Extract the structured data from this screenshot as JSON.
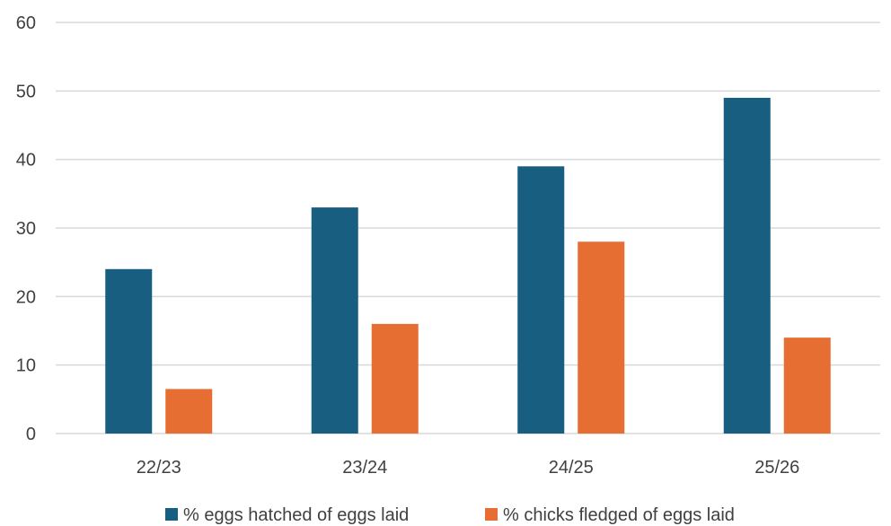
{
  "chart_data": {
    "type": "bar",
    "title": "",
    "xlabel": "",
    "ylabel": "",
    "ylim": [
      0,
      60
    ],
    "y_ticks": [
      0,
      10,
      20,
      30,
      40,
      50,
      60
    ],
    "grid": true,
    "legend_position": "bottom",
    "categories": [
      "22/23",
      "23/24",
      "24/25",
      "25/26"
    ],
    "series": [
      {
        "name": "% eggs hatched of eggs laid",
        "color": "#175e80",
        "values": [
          24,
          33,
          39,
          49
        ]
      },
      {
        "name": "% chicks fledged of eggs laid",
        "color": "#e66e32",
        "values": [
          6.5,
          16,
          28,
          14
        ]
      }
    ]
  }
}
